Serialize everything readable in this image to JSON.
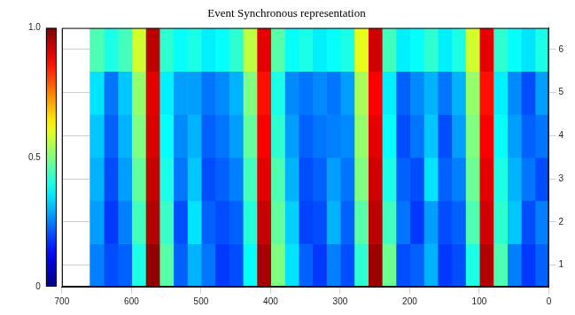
{
  "chart_data": {
    "type": "heatmap",
    "title": "Event Synchronous representation",
    "x": [
      10,
      30,
      50,
      70,
      90,
      110,
      130,
      150,
      170,
      190,
      210,
      230,
      250,
      270,
      290,
      310,
      330,
      350,
      370,
      390,
      410,
      430,
      450,
      470,
      490,
      510,
      530,
      550,
      570,
      590,
      610,
      630,
      650
    ],
    "y": [
      1,
      2,
      3,
      4,
      5,
      6
    ],
    "cells": [
      [
        0.22,
        0.18,
        0.25,
        0.45,
        0.95,
        0.4,
        0.2,
        0.18,
        0.3,
        0.22,
        0.2,
        0.48,
        0.97,
        0.42,
        0.2,
        0.25,
        0.18,
        0.22,
        0.35,
        0.5,
        0.96,
        0.38,
        0.2,
        0.18,
        0.24,
        0.3,
        0.22,
        0.46,
        0.98,
        0.4,
        0.22,
        0.2,
        0.25
      ],
      [
        0.25,
        0.2,
        0.32,
        0.42,
        0.92,
        0.45,
        0.22,
        0.2,
        0.28,
        0.18,
        0.24,
        0.44,
        0.94,
        0.46,
        0.22,
        0.3,
        0.2,
        0.19,
        0.33,
        0.47,
        0.93,
        0.41,
        0.22,
        0.2,
        0.22,
        0.35,
        0.2,
        0.43,
        0.95,
        0.44,
        0.25,
        0.18,
        0.28
      ],
      [
        0.2,
        0.24,
        0.3,
        0.4,
        0.9,
        0.48,
        0.25,
        0.22,
        0.35,
        0.2,
        0.22,
        0.4,
        0.92,
        0.5,
        0.24,
        0.28,
        0.22,
        0.2,
        0.3,
        0.45,
        0.9,
        0.44,
        0.25,
        0.22,
        0.2,
        0.32,
        0.24,
        0.4,
        0.93,
        0.47,
        0.28,
        0.2,
        0.3
      ],
      [
        0.24,
        0.22,
        0.28,
        0.38,
        0.88,
        0.5,
        0.28,
        0.2,
        0.32,
        0.24,
        0.2,
        0.38,
        0.9,
        0.52,
        0.26,
        0.25,
        0.24,
        0.22,
        0.28,
        0.42,
        0.88,
        0.47,
        0.28,
        0.24,
        0.22,
        0.3,
        0.26,
        0.38,
        0.91,
        0.5,
        0.3,
        0.22,
        0.32
      ],
      [
        0.28,
        0.2,
        0.26,
        0.36,
        0.86,
        0.52,
        0.3,
        0.24,
        0.3,
        0.26,
        0.22,
        0.36,
        0.88,
        0.54,
        0.28,
        0.24,
        0.26,
        0.24,
        0.26,
        0.4,
        0.86,
        0.5,
        0.3,
        0.26,
        0.24,
        0.28,
        0.28,
        0.36,
        0.9,
        0.52,
        0.32,
        0.24,
        0.35
      ],
      [
        0.4,
        0.35,
        0.38,
        0.42,
        0.9,
        0.58,
        0.4,
        0.36,
        0.42,
        0.38,
        0.36,
        0.44,
        0.92,
        0.6,
        0.4,
        0.38,
        0.36,
        0.4,
        0.38,
        0.46,
        0.9,
        0.56,
        0.42,
        0.38,
        0.36,
        0.4,
        0.38,
        0.42,
        0.94,
        0.58,
        0.44,
        0.4,
        0.45
      ]
    ],
    "xlim": [
      700,
      0
    ],
    "xticks": [
      0,
      100,
      200,
      300,
      400,
      500,
      600,
      700
    ],
    "ylim": [
      0.5,
      6.5
    ],
    "yticks": [
      1,
      2,
      3,
      4,
      5,
      6
    ],
    "colorbar_range": [
      0,
      1
    ],
    "colorbar_ticks": [
      0,
      0.5,
      1
    ],
    "grid": true
  }
}
